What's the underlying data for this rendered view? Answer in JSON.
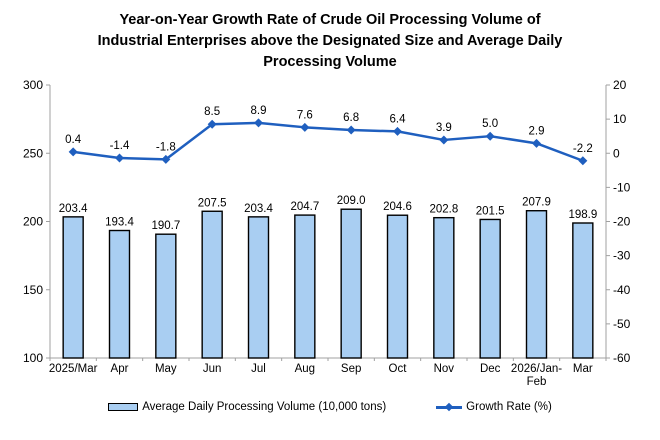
{
  "title": "Year-on-Year Growth Rate of Crude Oil Processing Volume of\nIndustrial Enterprises above the Designated Size and Average Daily\nProcessing Volume",
  "chart_data": {
    "type": "bar",
    "subtype": "bar-and-line-dual-axis",
    "categories": [
      "2025/Mar",
      "Apr",
      "May",
      "Jun",
      "Jul",
      "Aug",
      "Sep",
      "Oct",
      "Nov",
      "Dec",
      "2026/Jan-\nFeb",
      "Mar"
    ],
    "series": [
      {
        "name": "Average Daily Processing Volume (10,000 tons)",
        "type": "bar",
        "axis": "left",
        "values": [
          203.4,
          193.4,
          190.7,
          207.5,
          203.4,
          204.7,
          209.0,
          204.6,
          202.8,
          201.5,
          207.9,
          198.9
        ],
        "fill_color": "#A9CEF2",
        "border_color": "#000000"
      },
      {
        "name": "Growth Rate (%)",
        "type": "line",
        "axis": "right",
        "values": [
          0.4,
          -1.4,
          -1.8,
          8.5,
          8.9,
          7.6,
          6.8,
          6.4,
          3.9,
          5.0,
          2.9,
          -2.2
        ],
        "color": "#1F5FBF",
        "marker": "diamond"
      }
    ],
    "left_axis": {
      "min": 100,
      "max": 300,
      "step": 50,
      "tick_labels": [
        "300",
        "250",
        "200",
        "150",
        "100"
      ]
    },
    "right_axis": {
      "min": -60,
      "max": 20,
      "step": 10,
      "tick_labels": [
        "20",
        "10",
        "0",
        "-10",
        "-20",
        "-30",
        "-40",
        "-50",
        "-60"
      ]
    },
    "grid": false,
    "legend_position": "bottom",
    "data_labels_decimals": 1
  },
  "colors": {
    "axis": "#A0A0A0",
    "text": "#000000",
    "background": "#FFFFFF"
  }
}
